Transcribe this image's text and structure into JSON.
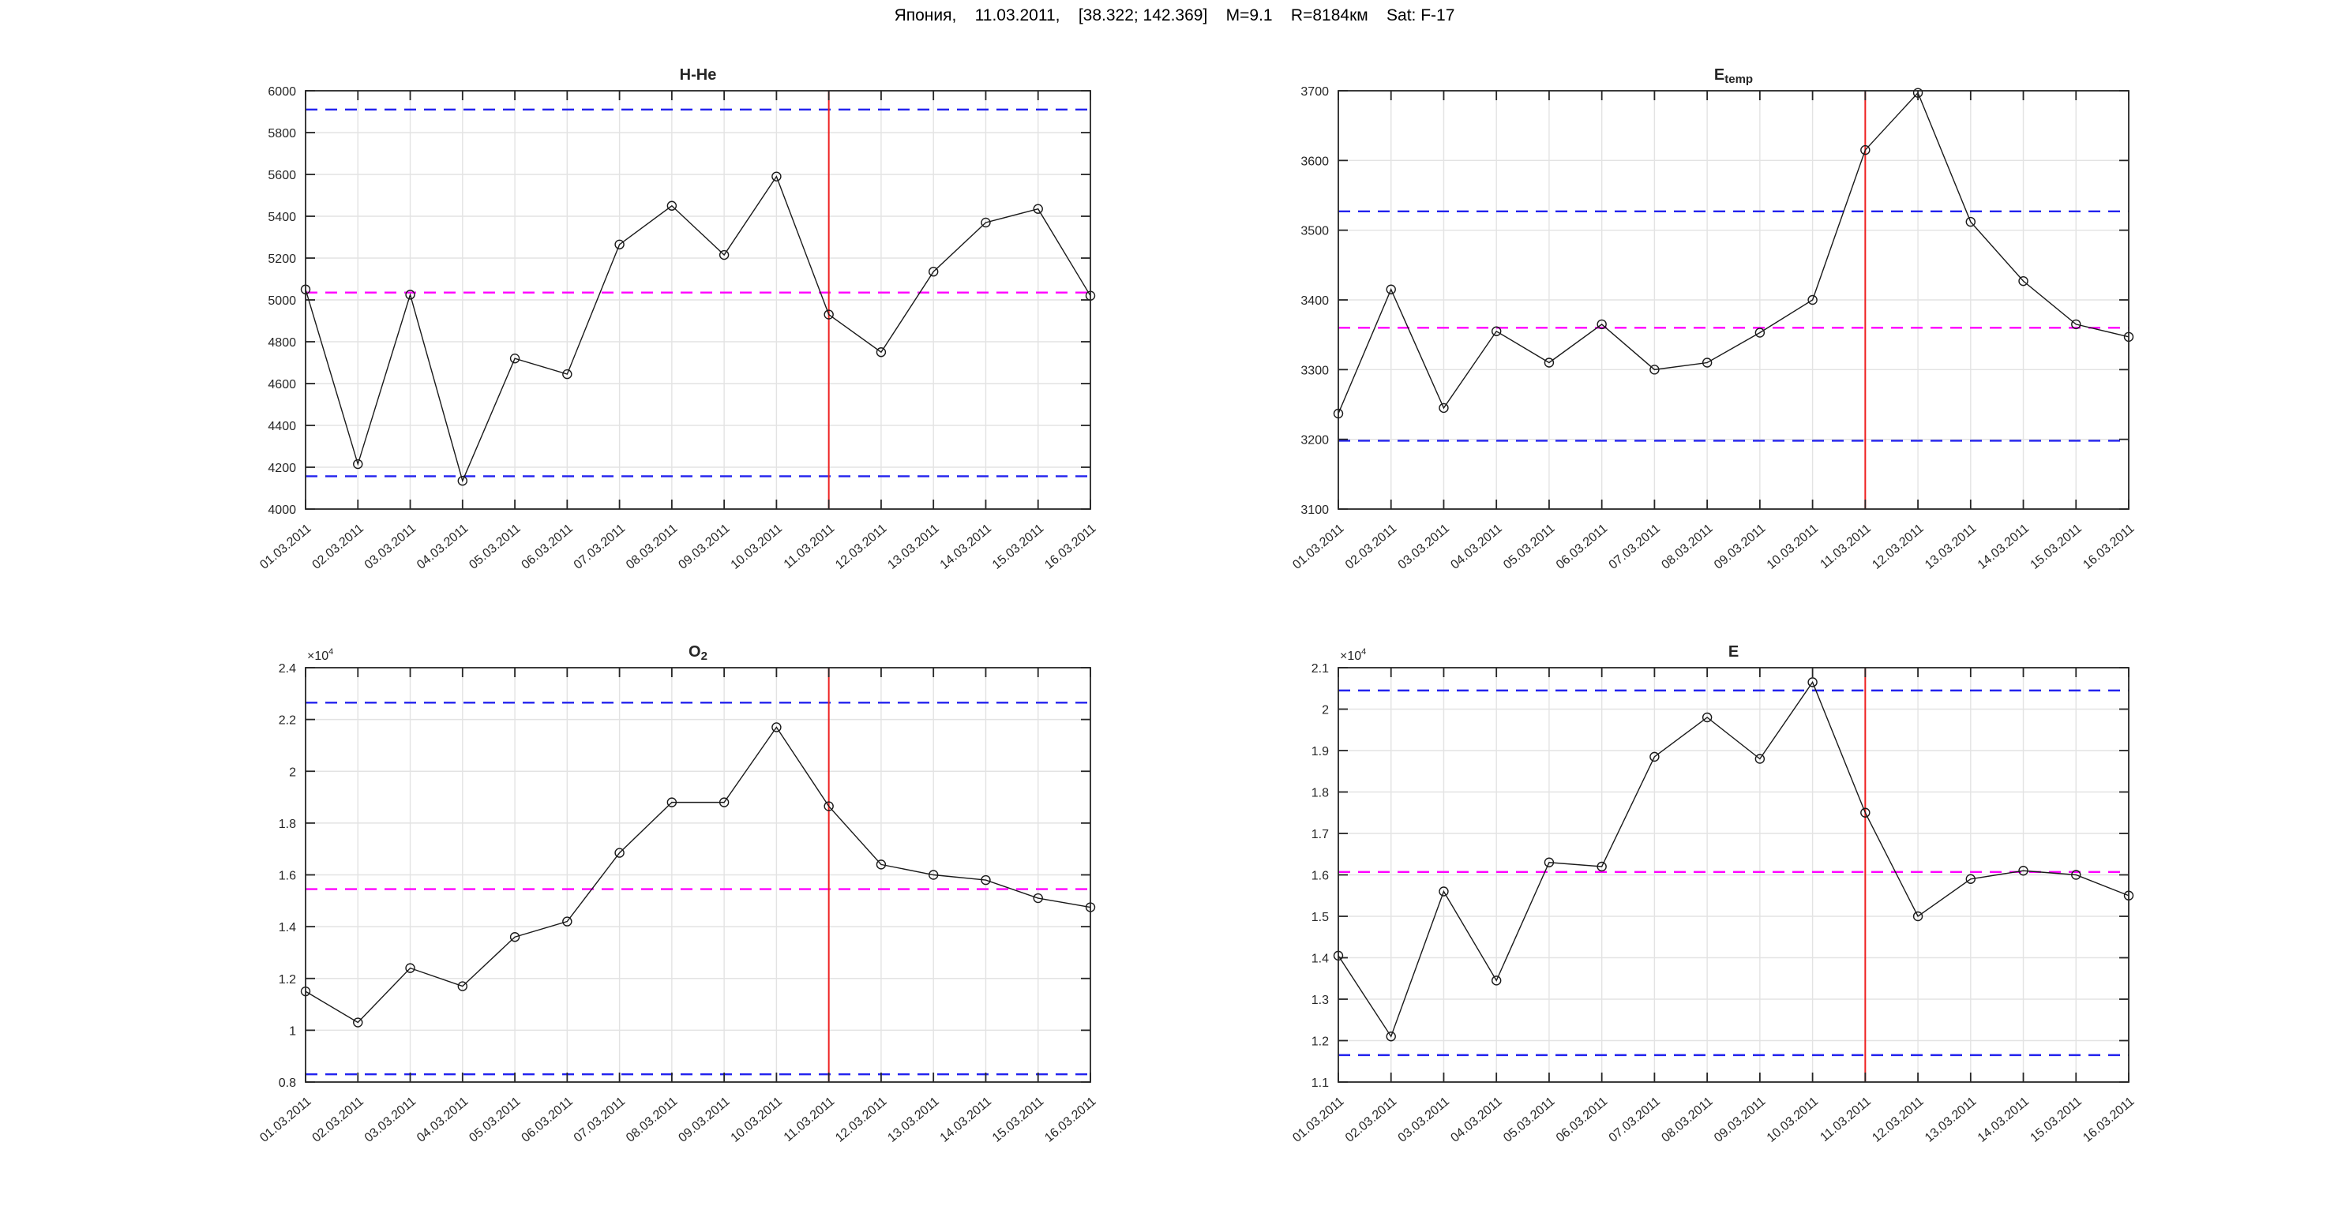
{
  "header": {
    "title": "Япония,    11.03.2011,    [38.322; 142.369]    M=9.1    R=8184км    Sat: F-17"
  },
  "colors": {
    "series_line": "#1a1a1a",
    "marker_edge": "#1a1a1a",
    "limit_dashed": "#2222ee",
    "mean_dashed": "#ff00ff",
    "event_line": "#ee2222",
    "grid": "#e3e3e3",
    "axis": "#262626",
    "tick_label": "#262626",
    "background": "#ffffff"
  },
  "chart_data": [
    {
      "id": "h-he",
      "type": "line",
      "title": {
        "base": "H-He",
        "sub": ""
      },
      "categories": [
        "01.03.2011",
        "02.03.2011",
        "03.03.2011",
        "04.03.2011",
        "05.03.2011",
        "06.03.2011",
        "07.03.2011",
        "08.03.2011",
        "09.03.2011",
        "10.03.2011",
        "11.03.2011",
        "12.03.2011",
        "13.03.2011",
        "14.03.2011",
        "15.03.2011",
        "16.03.2011"
      ],
      "values": [
        5050,
        4215,
        5025,
        4135,
        4720,
        4645,
        5265,
        5450,
        5215,
        5590,
        4930,
        4750,
        5135,
        5370,
        5435,
        5020
      ],
      "ylim": [
        4000,
        6000
      ],
      "ytick_step": 200,
      "values_scale": 1,
      "y_multiplier": null,
      "upper_limit": 5910,
      "lower_limit": 4157,
      "mean": 5035,
      "event_line_x": "11.03.2011",
      "grid": true,
      "marker": "o",
      "legend": null
    },
    {
      "id": "e-temp",
      "type": "line",
      "title": {
        "base": "E",
        "sub": "temp"
      },
      "categories": [
        "01.03.2011",
        "02.03.2011",
        "03.03.2011",
        "04.03.2011",
        "05.03.2011",
        "06.03.2011",
        "07.03.2011",
        "08.03.2011",
        "09.03.2011",
        "10.03.2011",
        "11.03.2011",
        "12.03.2011",
        "13.03.2011",
        "14.03.2011",
        "15.03.2011",
        "16.03.2011"
      ],
      "values": [
        3237,
        3415,
        3245,
        3355,
        3310,
        3365,
        3300,
        3310,
        3353,
        3400,
        3615,
        3697,
        3512,
        3427,
        3365,
        3347
      ],
      "ylim": [
        3100,
        3700
      ],
      "ytick_step": 100,
      "values_scale": 1,
      "y_multiplier": null,
      "upper_limit": 3527,
      "lower_limit": 3198,
      "mean": 3360,
      "event_line_x": "11.03.2011",
      "grid": true,
      "marker": "o",
      "legend": null
    },
    {
      "id": "o2",
      "type": "line",
      "title": {
        "base": "O",
        "sub": "2"
      },
      "categories": [
        "01.03.2011",
        "02.03.2011",
        "03.03.2011",
        "04.03.2011",
        "05.03.2011",
        "06.03.2011",
        "07.03.2011",
        "08.03.2011",
        "09.03.2011",
        "10.03.2011",
        "11.03.2011",
        "12.03.2011",
        "13.03.2011",
        "14.03.2011",
        "15.03.2011",
        "16.03.2011"
      ],
      "values": [
        1.15,
        1.03,
        1.24,
        1.17,
        1.36,
        1.42,
        1.685,
        1.88,
        1.88,
        2.17,
        1.865,
        1.64,
        1.6,
        1.58,
        1.51,
        1.475
      ],
      "ylim": [
        0.8,
        2.4
      ],
      "ytick_step": 0.2,
      "values_scale": 10000,
      "y_multiplier": {
        "base": "×10",
        "exp": "4"
      },
      "upper_limit": 2.265,
      "lower_limit": 0.83,
      "mean": 1.545,
      "event_line_x": "11.03.2011",
      "grid": true,
      "marker": "o",
      "legend": null
    },
    {
      "id": "e",
      "type": "line",
      "title": {
        "base": "E",
        "sub": ""
      },
      "categories": [
        "01.03.2011",
        "02.03.2011",
        "03.03.2011",
        "04.03.2011",
        "05.03.2011",
        "06.03.2011",
        "07.03.2011",
        "08.03.2011",
        "09.03.2011",
        "10.03.2011",
        "11.03.2011",
        "12.03.2011",
        "13.03.2011",
        "14.03.2011",
        "15.03.2011",
        "16.03.2011"
      ],
      "values": [
        1.405,
        1.21,
        1.56,
        1.345,
        1.63,
        1.62,
        1.885,
        1.98,
        1.88,
        2.065,
        1.75,
        1.5,
        1.59,
        1.61,
        1.6,
        1.55
      ],
      "ylim": [
        1.1,
        2.1
      ],
      "ytick_step": 0.1,
      "values_scale": 10000,
      "y_multiplier": {
        "base": "×10",
        "exp": "4"
      },
      "upper_limit": 2.045,
      "lower_limit": 1.165,
      "mean": 1.607,
      "event_line_x": "11.03.2011",
      "grid": true,
      "marker": "o",
      "legend": null
    }
  ]
}
